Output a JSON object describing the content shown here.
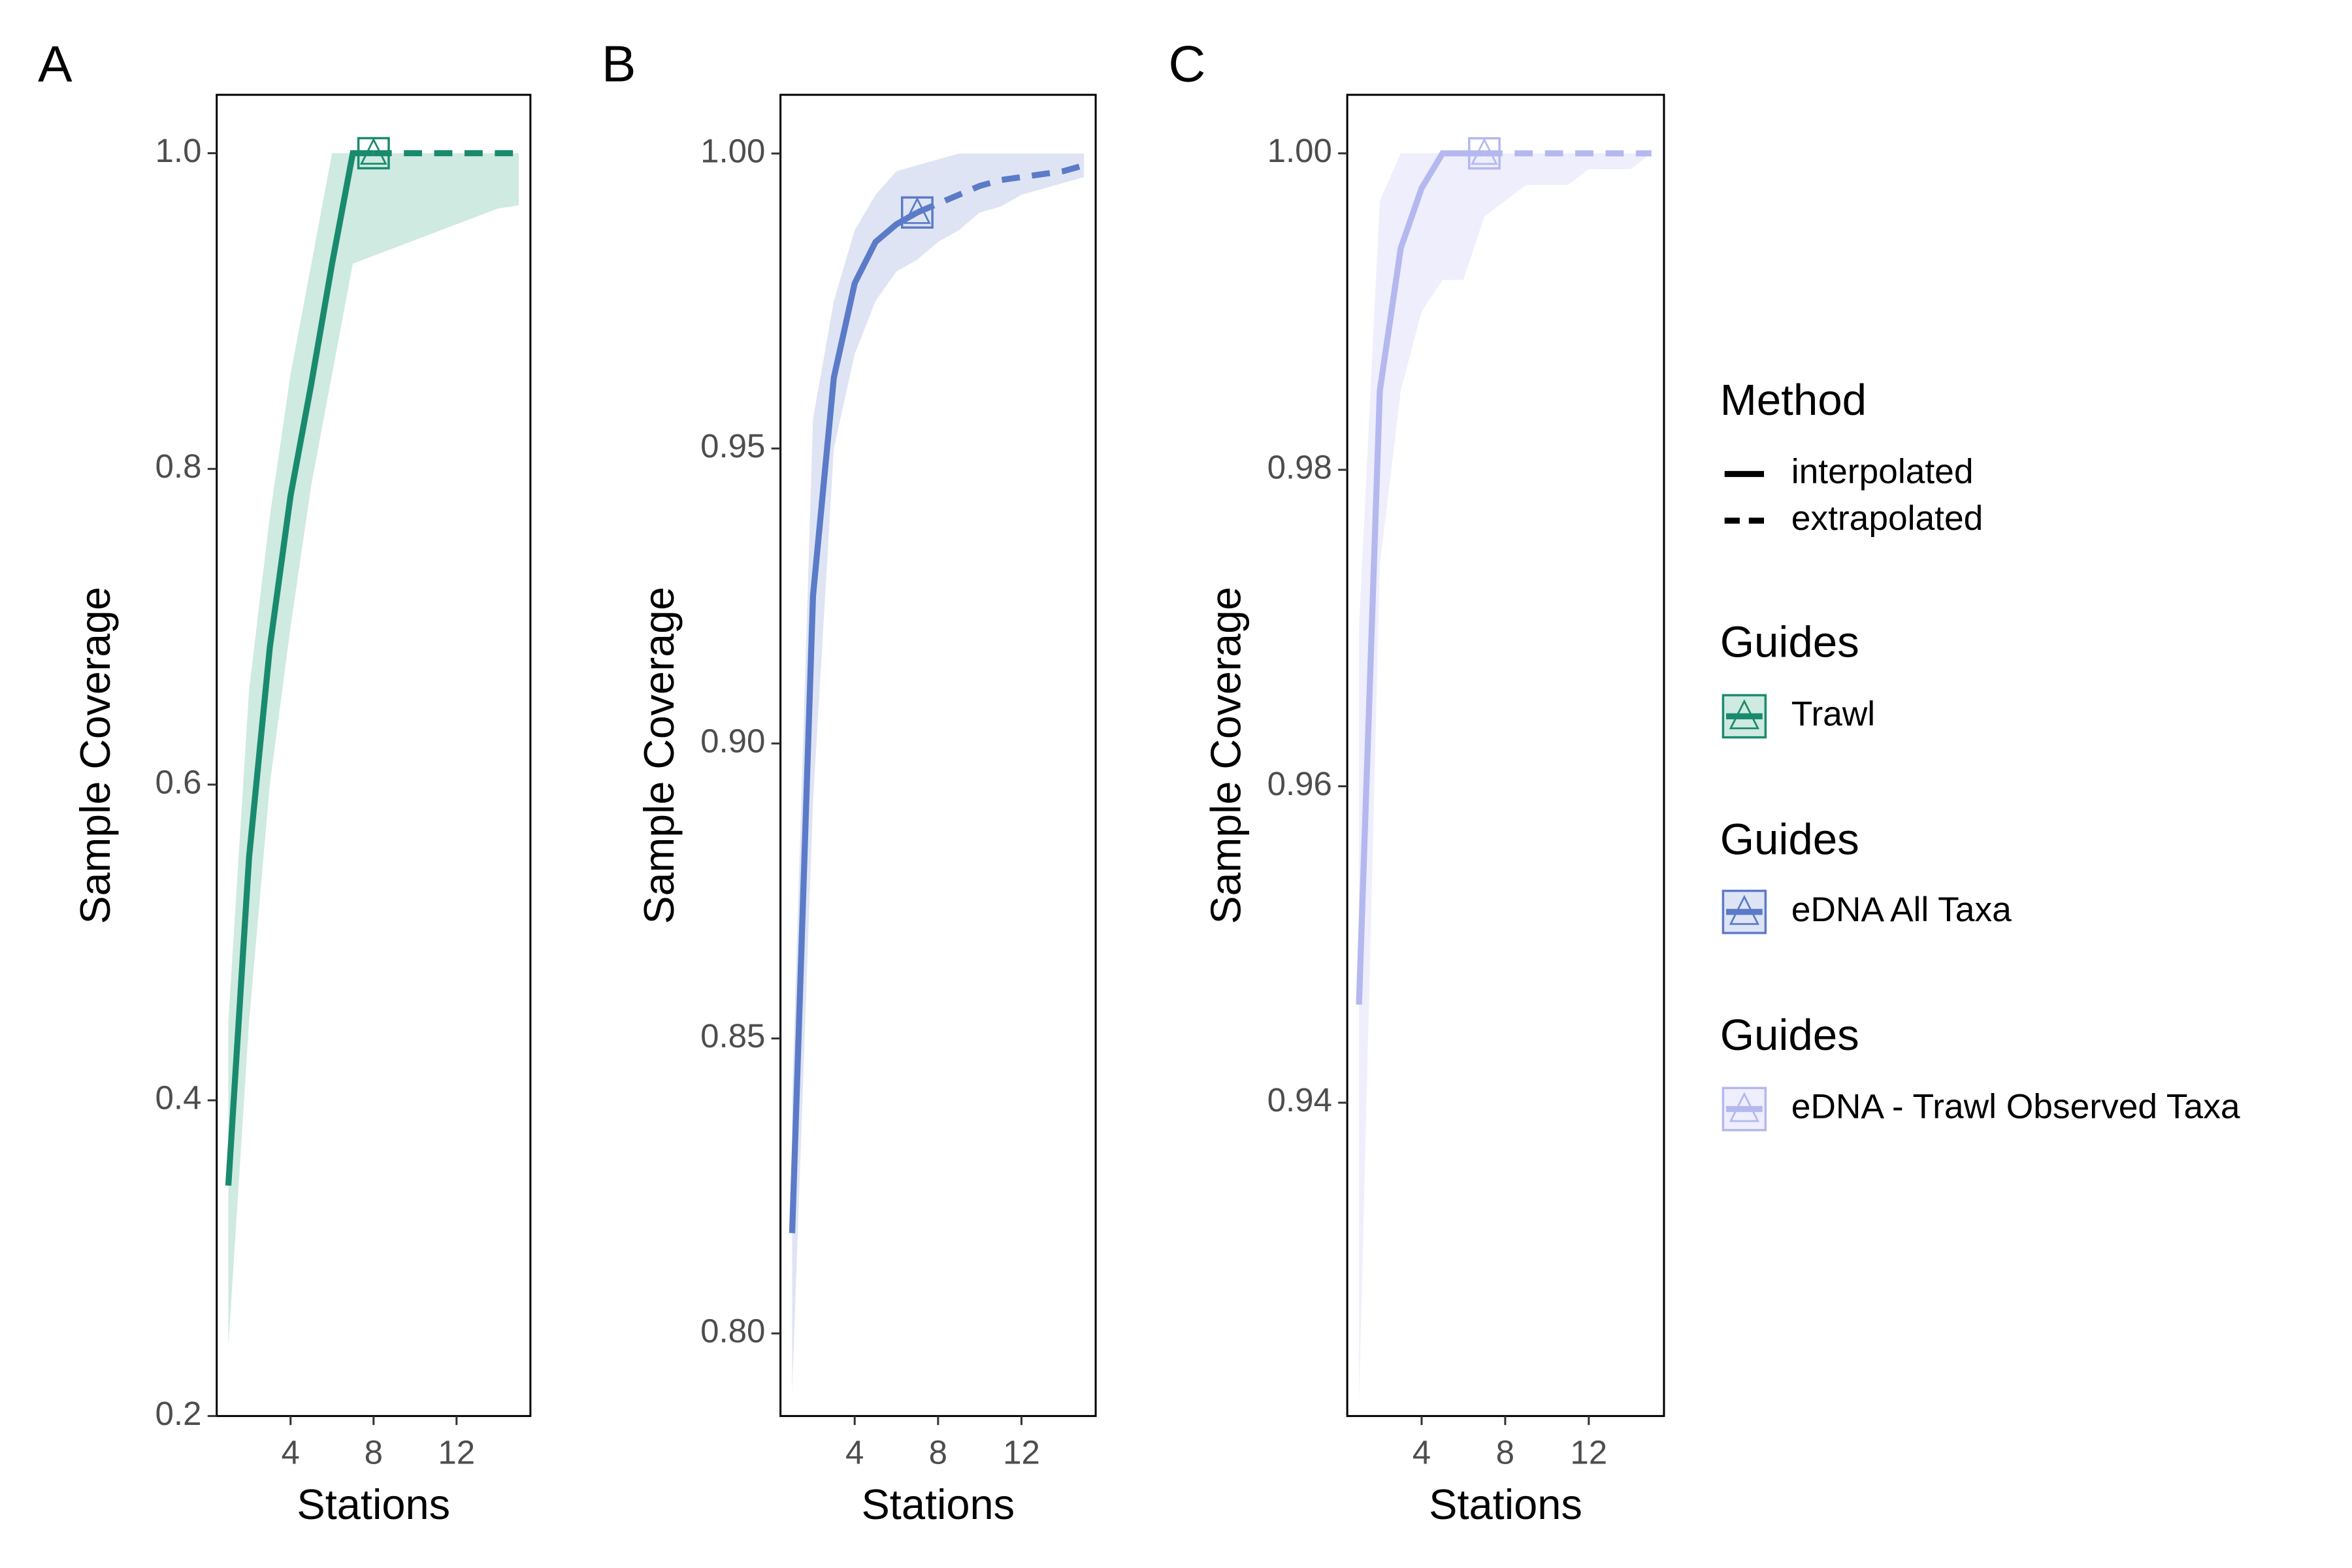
{
  "chart_data": [
    {
      "type": "line",
      "panel_label": "A",
      "xlabel": "Stations",
      "ylabel": "Sample Coverage",
      "legend_title": "Guides",
      "name": "Trawl",
      "color": "#1a8a6e",
      "band_color": "#cfeae0",
      "xlim": [
        0.44,
        15.56
      ],
      "xticks": [
        4,
        8,
        12
      ],
      "ylim": [
        0.2,
        1.037
      ],
      "yticks": [
        0.2,
        0.4,
        0.6,
        0.8,
        {
          "value": 1,
          "label": "1.0"
        }
      ],
      "x": [
        1,
        2,
        3,
        4,
        5,
        6,
        7,
        8,
        9,
        10,
        11,
        12,
        13,
        14,
        15
      ],
      "series": [
        {
          "dash": "solid",
          "values": [
            0.346,
            0.554,
            0.687,
            0.783,
            0.854,
            0.93,
            1.0,
            1.0,
            null,
            null,
            null,
            null,
            null,
            null,
            null
          ]
        },
        {
          "dash": "dashed",
          "values": [
            null,
            null,
            null,
            null,
            null,
            null,
            null,
            1.0,
            1.0,
            1.0,
            1.0,
            1.0,
            1.0,
            1.0,
            1.0
          ]
        }
      ],
      "lower": [
        0.244,
        0.45,
        0.6,
        0.7,
        0.79,
        0.86,
        0.93,
        0.935,
        0.94,
        0.945,
        0.95,
        0.955,
        0.96,
        0.965,
        0.967
      ],
      "upper": [
        0.45,
        0.66,
        0.77,
        0.86,
        0.93,
        1.0,
        1.0,
        1.0,
        1.0,
        1.0,
        1.0,
        1.0,
        1.0,
        1.0,
        1.0
      ],
      "observed": {
        "x": 8,
        "y": 1.0
      }
    },
    {
      "type": "line",
      "panel_label": "B",
      "xlabel": "Stations",
      "ylabel": "Sample Coverage",
      "legend_title": "Guides",
      "name": "eDNA All Taxa",
      "color": "#5b7bc8",
      "band_color": "#dfe4f4",
      "xlim": [
        0.44,
        15.56
      ],
      "xticks": [
        4,
        8,
        12
      ],
      "ylim": [
        0.786,
        1.00995
      ],
      "yticks": [
        {
          "value": 0.8,
          "label": "0.80"
        },
        0.85,
        {
          "value": 0.9,
          "label": "0.90"
        },
        0.95,
        {
          "value": 1,
          "label": "1.00"
        }
      ],
      "x": [
        1,
        2,
        3,
        4,
        5,
        6,
        7,
        8,
        9,
        10,
        11,
        12,
        13,
        14,
        15
      ],
      "series": [
        {
          "dash": "solid",
          "values": [
            0.817,
            0.925,
            0.962,
            0.978,
            0.985,
            0.988,
            0.99,
            null,
            null,
            null,
            null,
            null,
            null,
            null,
            null
          ]
        },
        {
          "dash": "dashed",
          "values": [
            null,
            null,
            null,
            null,
            null,
            null,
            0.99,
            0.9915,
            0.993,
            0.9945,
            0.9955,
            0.996,
            0.9965,
            0.997,
            0.998
          ]
        }
      ],
      "lower": [
        0.79,
        0.89,
        0.95,
        0.966,
        0.975,
        0.98,
        0.982,
        0.985,
        0.987,
        0.99,
        0.991,
        0.993,
        0.994,
        0.995,
        0.996
      ],
      "upper": [
        0.84,
        0.955,
        0.975,
        0.987,
        0.993,
        0.997,
        0.998,
        0.999,
        1.0,
        1.0,
        1.0,
        1.0,
        1.0,
        1.0,
        1.0
      ],
      "observed": {
        "x": 7,
        "y": 0.99
      }
    },
    {
      "type": "line",
      "panel_label": "C",
      "xlabel": "Stations",
      "ylabel": "Sample Coverage",
      "legend_title": "Guides",
      "name": "eDNA - Trawl Observed Taxa",
      "color": "#b4b8ef",
      "band_color": "#eeeefc",
      "xlim": [
        0.44,
        15.6
      ],
      "xticks": [
        4,
        8,
        12
      ],
      "ylim": [
        0.9202,
        1.0037
      ],
      "yticks": [
        0.94,
        0.96,
        0.98,
        {
          "value": 1,
          "label": "1.00"
        }
      ],
      "x": [
        1,
        2,
        3,
        4,
        5,
        6,
        7,
        8,
        9,
        10,
        11,
        12,
        13,
        14,
        15
      ],
      "series": [
        {
          "dash": "solid",
          "values": [
            0.9462,
            0.985,
            0.994,
            0.9978,
            1.0,
            1.0,
            1.0,
            null,
            null,
            null,
            null,
            null,
            null,
            null,
            null
          ]
        },
        {
          "dash": "dashed",
          "values": [
            null,
            null,
            null,
            null,
            null,
            null,
            1.0,
            1.0,
            1.0,
            1.0,
            1.0,
            1.0,
            1.0,
            1.0,
            1.0
          ]
        }
      ],
      "lower": [
        0.921,
        0.974,
        0.985,
        0.99,
        0.992,
        0.992,
        0.996,
        0.997,
        0.998,
        0.998,
        0.998,
        0.999,
        0.999,
        0.999,
        1.0
      ],
      "upper": [
        0.97,
        0.997,
        1.0,
        1.0,
        1.0,
        1.0,
        1.0,
        1.0,
        1.0,
        1.0,
        1.0,
        1.0,
        1.0,
        1.0,
        1.0
      ],
      "observed": {
        "x": 7,
        "y": 1.0
      }
    }
  ],
  "legend": {
    "title": "Method",
    "entries": [
      "interpolated",
      "extrapolated"
    ]
  }
}
